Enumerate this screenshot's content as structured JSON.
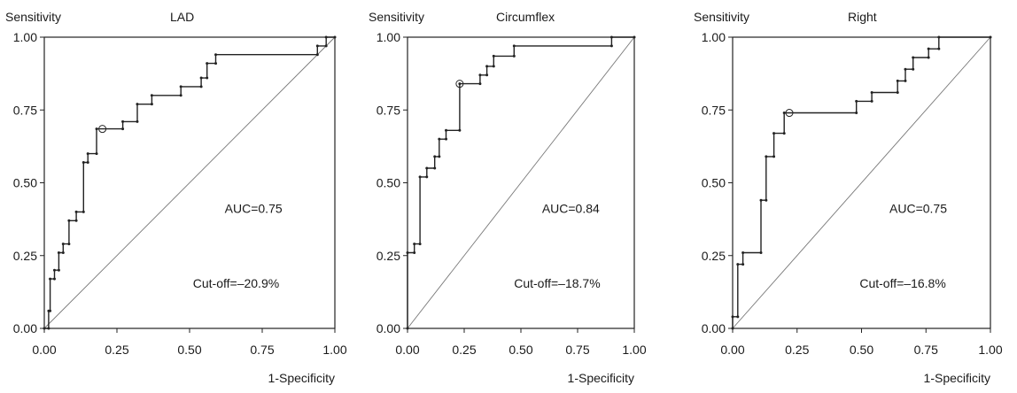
{
  "chart_data": [
    {
      "type": "line",
      "title": "LAD",
      "ylabel": "Sensitivity",
      "xlabel": "1-Specificity",
      "xlim": [
        0,
        1
      ],
      "ylim": [
        0,
        1
      ],
      "x_ticks": [
        "0.00",
        "0.25",
        "0.50",
        "0.75",
        "1.00"
      ],
      "y_ticks": [
        "0.00",
        "0.25",
        "0.50",
        "0.75",
        "1.00"
      ],
      "reference_line": "diagonal",
      "auc_label": "AUC=0.75",
      "cutoff_label": "Cut-off=–20.9%",
      "cutoff_point": [
        0.2,
        0.685
      ],
      "roc": [
        [
          0.0,
          0.0
        ],
        [
          0.015,
          0.0
        ],
        [
          0.015,
          0.06
        ],
        [
          0.02,
          0.06
        ],
        [
          0.02,
          0.17
        ],
        [
          0.035,
          0.17
        ],
        [
          0.035,
          0.2
        ],
        [
          0.05,
          0.2
        ],
        [
          0.05,
          0.26
        ],
        [
          0.065,
          0.26
        ],
        [
          0.065,
          0.29
        ],
        [
          0.085,
          0.29
        ],
        [
          0.085,
          0.37
        ],
        [
          0.11,
          0.37
        ],
        [
          0.11,
          0.4
        ],
        [
          0.135,
          0.4
        ],
        [
          0.135,
          0.57
        ],
        [
          0.15,
          0.57
        ],
        [
          0.15,
          0.6
        ],
        [
          0.18,
          0.6
        ],
        [
          0.18,
          0.685
        ],
        [
          0.27,
          0.685
        ],
        [
          0.27,
          0.71
        ],
        [
          0.32,
          0.71
        ],
        [
          0.32,
          0.77
        ],
        [
          0.37,
          0.77
        ],
        [
          0.37,
          0.8
        ],
        [
          0.47,
          0.8
        ],
        [
          0.47,
          0.83
        ],
        [
          0.54,
          0.83
        ],
        [
          0.54,
          0.86
        ],
        [
          0.56,
          0.86
        ],
        [
          0.56,
          0.91
        ],
        [
          0.59,
          0.91
        ],
        [
          0.59,
          0.94
        ],
        [
          0.94,
          0.94
        ],
        [
          0.94,
          0.97
        ],
        [
          0.97,
          0.97
        ],
        [
          0.97,
          1.0
        ],
        [
          1.0,
          1.0
        ]
      ]
    },
    {
      "type": "line",
      "title": "Circumflex",
      "ylabel": "Sensitivity",
      "xlabel": "1-Specificity",
      "xlim": [
        0,
        1
      ],
      "ylim": [
        0,
        1
      ],
      "x_ticks": [
        "0.00",
        "0.25",
        "0.50",
        "0.75",
        "1.00"
      ],
      "y_ticks": [
        "0.00",
        "0.25",
        "0.50",
        "0.75",
        "1.00"
      ],
      "reference_line": "diagonal",
      "auc_label": "AUC=0.84",
      "cutoff_label": "Cut-off=–18.7%",
      "cutoff_point": [
        0.23,
        0.84
      ],
      "roc": [
        [
          0.0,
          0.0
        ],
        [
          0.0,
          0.26
        ],
        [
          0.03,
          0.26
        ],
        [
          0.03,
          0.29
        ],
        [
          0.055,
          0.29
        ],
        [
          0.055,
          0.52
        ],
        [
          0.085,
          0.52
        ],
        [
          0.085,
          0.55
        ],
        [
          0.12,
          0.55
        ],
        [
          0.12,
          0.59
        ],
        [
          0.14,
          0.59
        ],
        [
          0.14,
          0.65
        ],
        [
          0.17,
          0.65
        ],
        [
          0.17,
          0.68
        ],
        [
          0.23,
          0.68
        ],
        [
          0.23,
          0.84
        ],
        [
          0.32,
          0.84
        ],
        [
          0.32,
          0.87
        ],
        [
          0.35,
          0.87
        ],
        [
          0.35,
          0.9
        ],
        [
          0.38,
          0.9
        ],
        [
          0.38,
          0.935
        ],
        [
          0.47,
          0.935
        ],
        [
          0.47,
          0.97
        ],
        [
          0.9,
          0.97
        ],
        [
          0.9,
          1.0
        ],
        [
          1.0,
          1.0
        ]
      ]
    },
    {
      "type": "line",
      "title": "Right",
      "ylabel": "Sensitivity",
      "xlabel": "1-Specificity",
      "xlim": [
        0,
        1
      ],
      "ylim": [
        0,
        1
      ],
      "x_ticks": [
        "0.00",
        "0.25",
        "0.50",
        "0.75",
        "1.00"
      ],
      "y_ticks": [
        "0.00",
        "0.25",
        "0.50",
        "0.75",
        "1.00"
      ],
      "reference_line": "diagonal",
      "auc_label": "AUC=0.75",
      "cutoff_label": "Cut-off=–16.8%",
      "cutoff_point": [
        0.22,
        0.74
      ],
      "roc": [
        [
          0.0,
          0.0
        ],
        [
          0.0,
          0.04
        ],
        [
          0.02,
          0.04
        ],
        [
          0.02,
          0.22
        ],
        [
          0.04,
          0.22
        ],
        [
          0.04,
          0.26
        ],
        [
          0.11,
          0.26
        ],
        [
          0.11,
          0.44
        ],
        [
          0.13,
          0.44
        ],
        [
          0.13,
          0.59
        ],
        [
          0.16,
          0.59
        ],
        [
          0.16,
          0.67
        ],
        [
          0.2,
          0.67
        ],
        [
          0.2,
          0.74
        ],
        [
          0.48,
          0.74
        ],
        [
          0.48,
          0.78
        ],
        [
          0.54,
          0.78
        ],
        [
          0.54,
          0.81
        ],
        [
          0.64,
          0.81
        ],
        [
          0.64,
          0.85
        ],
        [
          0.67,
          0.85
        ],
        [
          0.67,
          0.89
        ],
        [
          0.7,
          0.89
        ],
        [
          0.7,
          0.93
        ],
        [
          0.76,
          0.93
        ],
        [
          0.76,
          0.96
        ],
        [
          0.8,
          0.96
        ],
        [
          0.8,
          1.0
        ],
        [
          1.0,
          1.0
        ]
      ]
    }
  ]
}
